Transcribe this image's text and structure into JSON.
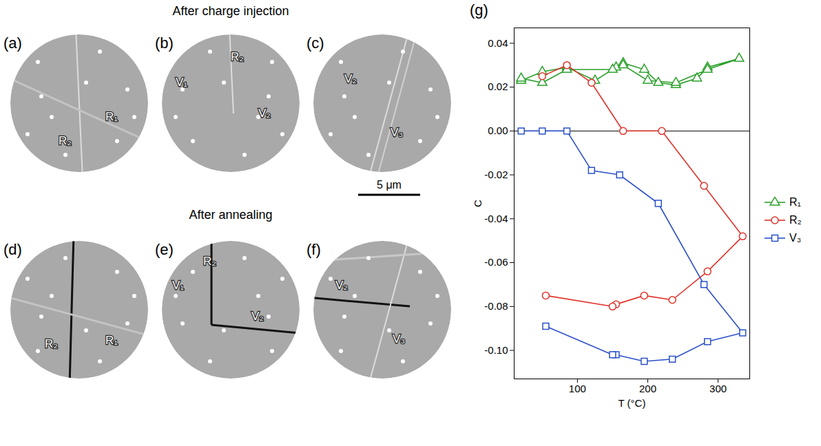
{
  "figure": {
    "rows": [
      {
        "title": "After charge injection",
        "panels": [
          {
            "letter": "(a)",
            "labels": [
              "R₁",
              "R₂"
            ]
          },
          {
            "letter": "(b)",
            "labels": [
              "V₁",
              "R₂",
              "V₂"
            ]
          },
          {
            "letter": "(c)",
            "labels": [
              "V₂",
              "V₃"
            ]
          }
        ]
      },
      {
        "title": "After annealing",
        "panels": [
          {
            "letter": "(d)",
            "labels": [
              "R₂",
              "R₁"
            ]
          },
          {
            "letter": "(e)",
            "labels": [
              "V₁",
              "R₂",
              "V₂"
            ]
          },
          {
            "letter": "(f)",
            "labels": [
              "V₂",
              "V₃"
            ]
          }
        ]
      }
    ],
    "scale_bar": "5 μm"
  },
  "chart_data": {
    "type": "line",
    "letter": "(g)",
    "x_label": "T (°C)",
    "y_label": "C",
    "xlim": [
      10,
      345
    ],
    "xticks": [
      100,
      200,
      300
    ],
    "ylim": [
      -0.113,
      0.047
    ],
    "yticks": [
      {
        "value": -0.1,
        "label": "-0.10"
      },
      {
        "value": -0.08,
        "label": "-0.08"
      },
      {
        "value": -0.06,
        "label": "-0.06"
      },
      {
        "value": -0.04,
        "label": "-0.04"
      },
      {
        "value": -0.02,
        "label": "-0.02"
      },
      {
        "value": 0.0,
        "label": "0.00"
      },
      {
        "value": 0.02,
        "label": "0.02"
      },
      {
        "value": 0.04,
        "label": "0.04"
      }
    ],
    "grid": false,
    "legend": "right",
    "series": [
      {
        "name": "R₁",
        "color": "#2ca02c",
        "marker": "triangle",
        "x": [
          20,
          50,
          85,
          125,
          155,
          165,
          195,
          215,
          240,
          270,
          285,
          330,
          285,
          240,
          200,
          165,
          150,
          85,
          50,
          20
        ],
        "values": [
          0.023,
          0.027,
          0.029,
          0.023,
          0.029,
          0.031,
          0.028,
          0.022,
          0.021,
          0.024,
          0.029,
          0.033,
          0.028,
          0.022,
          0.023,
          0.03,
          0.028,
          0.028,
          0.022,
          0.024
        ]
      },
      {
        "name": "R₂",
        "color": "#e0332b",
        "marker": "circle",
        "x": [
          50,
          85,
          120,
          165,
          220,
          280,
          335,
          285,
          235,
          195,
          155,
          150,
          55
        ],
        "values": [
          0.025,
          0.03,
          0.022,
          0.0,
          0.0,
          -0.025,
          -0.048,
          -0.064,
          -0.077,
          -0.075,
          -0.079,
          -0.08,
          -0.075
        ]
      },
      {
        "name": "V₃",
        "color": "#2b50c8",
        "marker": "square",
        "x": [
          20,
          50,
          85,
          120,
          160,
          215,
          280,
          335,
          285,
          235,
          195,
          155,
          150,
          55
        ],
        "values": [
          0.0,
          0.0,
          0.0,
          -0.018,
          -0.02,
          -0.033,
          -0.07,
          -0.092,
          -0.096,
          -0.104,
          -0.105,
          -0.102,
          -0.102,
          -0.089
        ]
      }
    ]
  }
}
